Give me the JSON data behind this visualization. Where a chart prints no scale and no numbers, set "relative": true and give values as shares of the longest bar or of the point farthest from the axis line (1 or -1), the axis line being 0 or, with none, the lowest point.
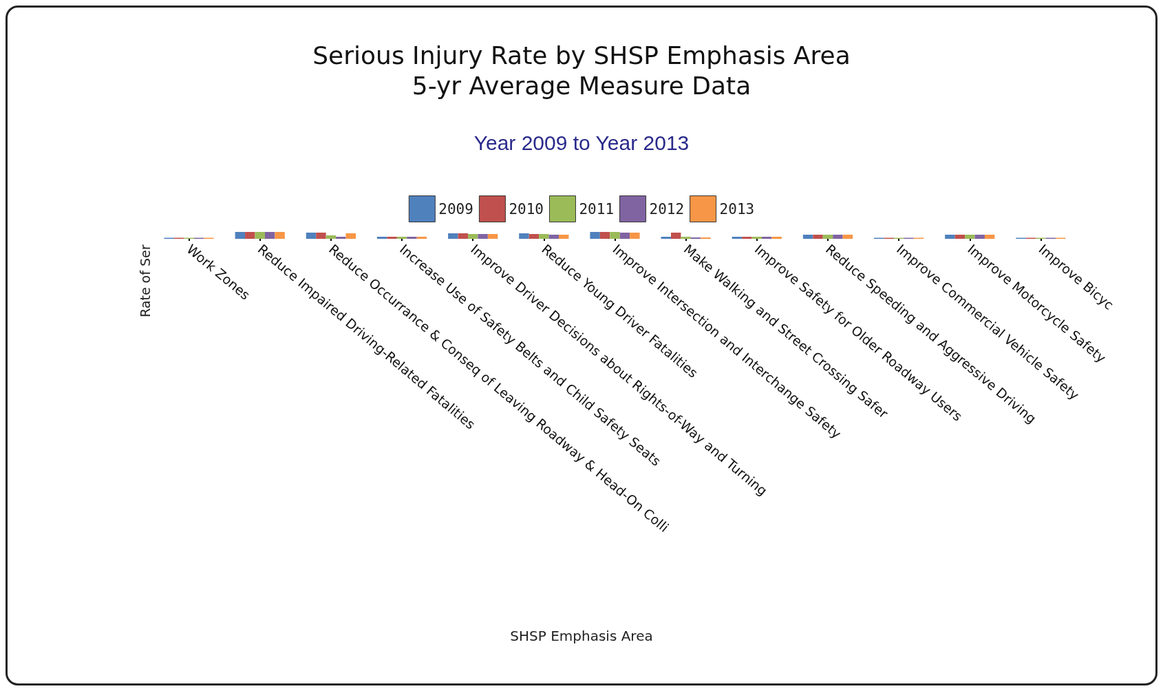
{
  "chart_data": {
    "type": "bar",
    "title": "Serious Injury Rate by SHSP Emphasis Area\n5-yr Average Measure Data",
    "subtitle": "Year 2009 to Year 2013",
    "ylabel": "Rate of Ser",
    "annotations": [
      "SHSP Emphasis Area"
    ],
    "relative": true,
    "legend": "top",
    "grid": false,
    "categories": [
      "Work Zones",
      "Reduce Impaired Driving-Related Fatalities",
      "Reduce Occurrance & Conseq of Leaving Roadway & Head-On Colli",
      "Increase Use of Safety Belts and Child Safety Seats",
      "Improve Driver Decisions about Rights-of-Way and Turning",
      "Reduce Young Driver Fatalities",
      "Improve Intersection and Interchange Safety",
      "Make Walking and Street Crossing Safer",
      "Improve Safety for Older Roadway Users",
      "Reduce Speeding and Aggressive Driving",
      "Improve Commercial Vehicle Safety",
      "Improve Motorcycle Safety",
      "Improve Bicyc"
    ],
    "series": [
      {
        "name": "2009",
        "color": "#4f81bd",
        "values": [
          0.15,
          1,
          0.9,
          0.3,
          0.8,
          0.8,
          1,
          0.3,
          0.3,
          0.6,
          0.15,
          0.6,
          0.15
        ]
      },
      {
        "name": "2010",
        "color": "#c0504d",
        "values": [
          0.15,
          1,
          0.9,
          0.3,
          0.8,
          0.7,
          1,
          0.9,
          0.3,
          0.6,
          0.15,
          0.6,
          0.15
        ]
      },
      {
        "name": "2011",
        "color": "#9bbb59",
        "values": [
          0.15,
          1,
          0.5,
          0.3,
          0.7,
          0.7,
          1,
          0.3,
          0.3,
          0.6,
          0.15,
          0.6,
          0.15
        ]
      },
      {
        "name": "2012",
        "color": "#8064a2",
        "values": [
          0.15,
          1,
          0.3,
          0.3,
          0.7,
          0.6,
          0.9,
          0.2,
          0.3,
          0.6,
          0.15,
          0.6,
          0.15
        ]
      },
      {
        "name": "2013",
        "color": "#f79646",
        "values": [
          0.15,
          1,
          0.8,
          0.3,
          0.7,
          0.6,
          0.9,
          0.2,
          0.3,
          0.6,
          0.15,
          0.6,
          0.15
        ]
      }
    ]
  }
}
